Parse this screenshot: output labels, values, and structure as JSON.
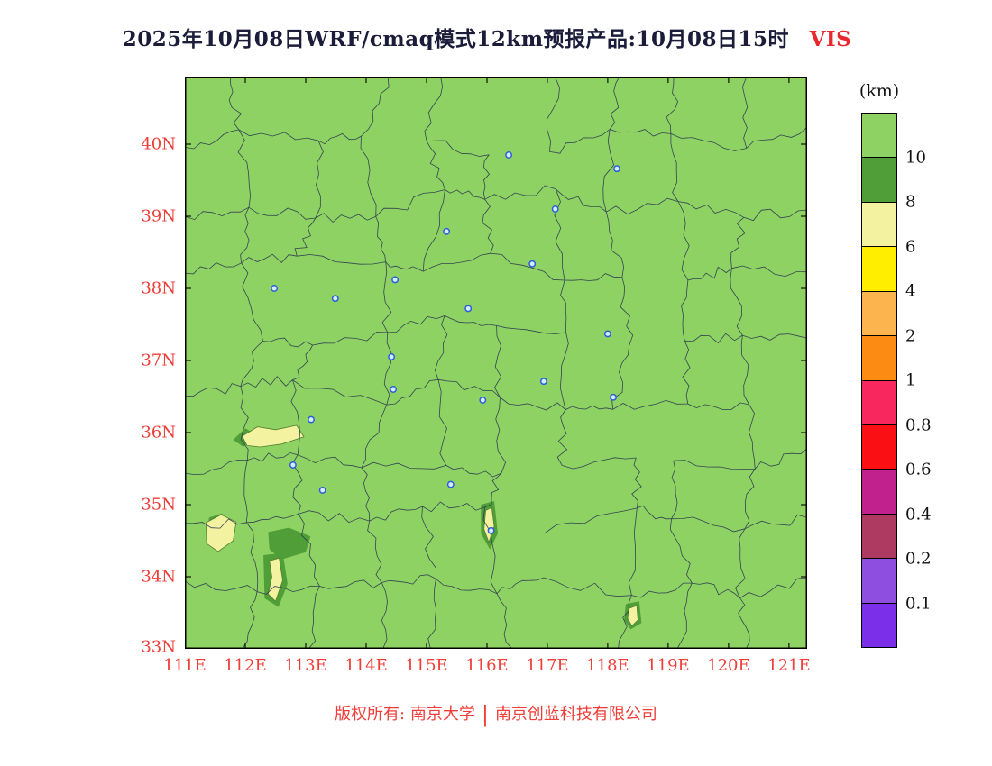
{
  "title": {
    "text": "2025年10月08日WRF/cmaq模式12km预报产品:10月08日15时",
    "variable": "VIS"
  },
  "axes": {
    "lat_ticks": [
      {
        "label": "40N",
        "value": 40
      },
      {
        "label": "39N",
        "value": 39
      },
      {
        "label": "38N",
        "value": 38
      },
      {
        "label": "37N",
        "value": 37
      },
      {
        "label": "36N",
        "value": 36
      },
      {
        "label": "35N",
        "value": 35
      },
      {
        "label": "34N",
        "value": 34
      },
      {
        "label": "33N",
        "value": 33
      }
    ],
    "lon_ticks": [
      {
        "label": "111E",
        "value": 111
      },
      {
        "label": "112E",
        "value": 112
      },
      {
        "label": "113E",
        "value": 113
      },
      {
        "label": "114E",
        "value": 114
      },
      {
        "label": "115E",
        "value": 115
      },
      {
        "label": "116E",
        "value": 116
      },
      {
        "label": "117E",
        "value": 117
      },
      {
        "label": "118E",
        "value": 118
      },
      {
        "label": "119E",
        "value": 119
      },
      {
        "label": "120E",
        "value": 120
      },
      {
        "label": "121E",
        "value": 121
      }
    ],
    "lon_range": [
      111,
      121.3
    ],
    "lat_range": [
      33,
      40.9375
    ],
    "tick_label_color": "#ef3d38"
  },
  "colorbar": {
    "unit": "(km)",
    "colors": [
      "#8ed263",
      "#4f9e38",
      "#f2f2a0",
      "#ffee00",
      "#fcb44e",
      "#fb8b12",
      "#f8285f",
      "#fa0f14",
      "#c0218c",
      "#ae3a62",
      "#8e4fe0",
      "#7b2fe8"
    ],
    "labels": [
      "10",
      "8",
      "6",
      "4",
      "2",
      "1",
      "0.8",
      "0.6",
      "0.4",
      "0.2",
      "0.1"
    ]
  },
  "map": {
    "background": "#8ed263",
    "boundary_color": "#2a3550",
    "frame_color": "#000000",
    "marker_color": "#2b5fd9",
    "marker_fill": "#d6ecff",
    "patch_colors": {
      "pale_yellow": "#f2f2a0",
      "dark_green": "#4f9e38"
    },
    "markers": [
      [
        116.36,
        39.85
      ],
      [
        118.15,
        39.66
      ],
      [
        117.13,
        39.1
      ],
      [
        115.33,
        38.79
      ],
      [
        116.75,
        38.34
      ],
      [
        114.48,
        38.12
      ],
      [
        112.48,
        38.0
      ],
      [
        113.49,
        37.86
      ],
      [
        115.69,
        37.72
      ],
      [
        118.0,
        37.37
      ],
      [
        114.42,
        37.05
      ],
      [
        114.45,
        36.6
      ],
      [
        115.93,
        36.45
      ],
      [
        116.94,
        36.71
      ],
      [
        118.09,
        36.49
      ],
      [
        113.09,
        36.18
      ],
      [
        112.79,
        35.55
      ],
      [
        113.28,
        35.2
      ],
      [
        115.4,
        35.28
      ],
      [
        116.07,
        34.64
      ]
    ],
    "green_regions": [
      [
        [
          111.8,
          35.9
        ],
        [
          112.0,
          36.06
        ],
        [
          112.18,
          35.97
        ],
        [
          111.97,
          35.8
        ]
      ],
      [
        [
          112.38,
          34.62
        ],
        [
          112.72,
          34.68
        ],
        [
          113.08,
          34.56
        ],
        [
          113.0,
          34.34
        ],
        [
          112.6,
          34.24
        ],
        [
          112.4,
          34.38
        ]
      ],
      [
        [
          111.4,
          34.82
        ],
        [
          111.62,
          34.88
        ],
        [
          111.72,
          34.72
        ],
        [
          111.52,
          34.6
        ],
        [
          111.38,
          34.68
        ]
      ],
      [
        [
          115.9,
          35.0
        ],
        [
          116.12,
          35.05
        ],
        [
          116.18,
          34.6
        ],
        [
          116.05,
          34.38
        ],
        [
          115.9,
          34.6
        ]
      ],
      [
        [
          118.3,
          33.62
        ],
        [
          118.52,
          33.66
        ],
        [
          118.56,
          33.36
        ],
        [
          118.38,
          33.27
        ],
        [
          118.27,
          33.4
        ]
      ],
      [
        [
          112.3,
          34.3
        ],
        [
          112.62,
          34.33
        ],
        [
          112.7,
          33.9
        ],
        [
          112.55,
          33.58
        ],
        [
          112.32,
          33.7
        ]
      ]
    ],
    "yellow_regions": [
      [
        [
          111.95,
          35.95
        ],
        [
          112.2,
          36.08
        ],
        [
          112.5,
          36.04
        ],
        [
          112.85,
          36.1
        ],
        [
          112.97,
          35.94
        ],
        [
          112.6,
          35.84
        ],
        [
          112.25,
          35.8
        ],
        [
          112.03,
          35.82
        ]
      ],
      [
        [
          111.35,
          34.75
        ],
        [
          111.6,
          34.86
        ],
        [
          111.85,
          34.76
        ],
        [
          111.8,
          34.5
        ],
        [
          111.55,
          34.35
        ],
        [
          111.36,
          34.46
        ]
      ],
      [
        [
          112.4,
          34.22
        ],
        [
          112.56,
          34.26
        ],
        [
          112.62,
          33.95
        ],
        [
          112.5,
          33.66
        ],
        [
          112.38,
          33.76
        ],
        [
          112.44,
          34.0
        ]
      ],
      [
        [
          115.98,
          34.92
        ],
        [
          116.08,
          34.96
        ],
        [
          116.12,
          34.7
        ],
        [
          116.03,
          34.48
        ],
        [
          115.95,
          34.66
        ]
      ],
      [
        [
          118.35,
          33.56
        ],
        [
          118.48,
          33.6
        ],
        [
          118.5,
          33.4
        ],
        [
          118.4,
          33.32
        ],
        [
          118.33,
          33.42
        ]
      ]
    ]
  },
  "footer": {
    "owner": "版权所有: 南京大学",
    "separator": "|",
    "company": "南京创蓝科技有限公司"
  }
}
